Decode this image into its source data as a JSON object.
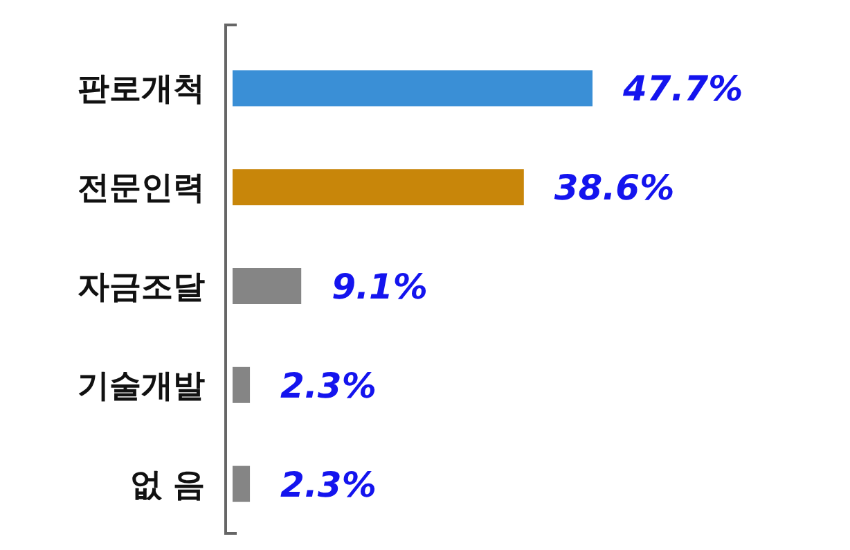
{
  "chart_data": {
    "type": "bar",
    "orientation": "horizontal",
    "categories": [
      "판로개척",
      "전문인력",
      "자금조달",
      "기술개발",
      "없 음"
    ],
    "values": [
      47.7,
      38.6,
      9.1,
      2.3,
      2.3
    ],
    "colors": [
      "#3a8fd6",
      "#c8860a",
      "#858585",
      "#858585",
      "#858585"
    ],
    "value_labels": [
      "47.7%",
      "38.6%",
      "9.1%",
      "2.3%",
      "2.3%"
    ]
  }
}
